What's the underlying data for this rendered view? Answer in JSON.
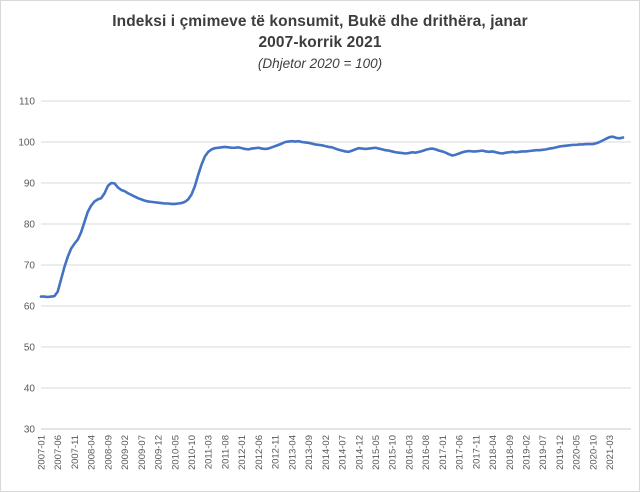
{
  "chart": {
    "title_line1": "Indeksi i çmimeve të konsumit, Bukë dhe drithëra, janar",
    "title_line2": "2007-korrik 2021",
    "subtitle": "(Dhjetor 2020 = 100)"
  },
  "chart_data": {
    "type": "line",
    "title": "Indeksi i çmimeve të konsumit, Bukë dhe drithëra, janar 2007-korrik 2021",
    "subtitle": "(Dhjetor 2020 = 100)",
    "x_start": "2007-01",
    "x_end": "2021-07",
    "frequency": "monthly",
    "x_tick_every_n_months": 5,
    "x_tick_labels": [
      "2007-01",
      "2007-06",
      "2007-11",
      "2008-04",
      "2008-09",
      "2009-02",
      "2009-07",
      "2009-12",
      "2010-05",
      "2010-10",
      "2011-03",
      "2011-08",
      "2012-01",
      "2012-06",
      "2012-11",
      "2013-04",
      "2013-09",
      "2014-02",
      "2014-07",
      "2014-12",
      "2015-05",
      "2015-10",
      "2016-03",
      "2016-08",
      "2017-01",
      "2017-06",
      "2017-11",
      "2018-04",
      "2018-09",
      "2019-02",
      "2019-07",
      "2019-12",
      "2020-05",
      "2020-10",
      "2021-03"
    ],
    "y_tick_labels": [
      "30",
      "40",
      "50",
      "60",
      "70",
      "80",
      "90",
      "100",
      "110"
    ],
    "ylim": [
      30,
      110
    ],
    "ytick_step": 10,
    "grid": "horizontal",
    "legend": "none",
    "series_name": "Indeksi i çmimeve të konsumit, Bukë dhe drithëra",
    "values": [
      62.3,
      62.3,
      62.2,
      62.3,
      62.4,
      63.5,
      66.5,
      69.5,
      72.0,
      74.0,
      75.2,
      76.2,
      78.0,
      80.5,
      83.0,
      84.5,
      85.5,
      86.0,
      86.3,
      87.5,
      89.3,
      90.0,
      89.9,
      88.9,
      88.3,
      88.0,
      87.5,
      87.1,
      86.7,
      86.3,
      86.0,
      85.7,
      85.5,
      85.4,
      85.3,
      85.2,
      85.1,
      85.0,
      85.0,
      84.9,
      84.9,
      85.0,
      85.1,
      85.4,
      86.0,
      87.2,
      89.2,
      92.0,
      94.5,
      96.5,
      97.6,
      98.2,
      98.5,
      98.6,
      98.7,
      98.8,
      98.7,
      98.6,
      98.6,
      98.7,
      98.5,
      98.3,
      98.2,
      98.4,
      98.5,
      98.6,
      98.4,
      98.3,
      98.4,
      98.7,
      99.0,
      99.3,
      99.6,
      100.0,
      100.1,
      100.2,
      100.1,
      100.2,
      100.0,
      99.9,
      99.8,
      99.6,
      99.4,
      99.3,
      99.2,
      99.0,
      98.8,
      98.7,
      98.4,
      98.1,
      97.9,
      97.7,
      97.6,
      97.9,
      98.2,
      98.5,
      98.4,
      98.3,
      98.4,
      98.5,
      98.6,
      98.4,
      98.2,
      98.0,
      97.9,
      97.7,
      97.5,
      97.4,
      97.3,
      97.2,
      97.3,
      97.5,
      97.4,
      97.6,
      97.8,
      98.1,
      98.3,
      98.4,
      98.2,
      97.9,
      97.7,
      97.4,
      97.0,
      96.7,
      96.9,
      97.2,
      97.5,
      97.7,
      97.8,
      97.7,
      97.7,
      97.8,
      97.9,
      97.7,
      97.6,
      97.7,
      97.5,
      97.3,
      97.2,
      97.4,
      97.5,
      97.6,
      97.5,
      97.6,
      97.7,
      97.7,
      97.8,
      97.9,
      98.0,
      98.0,
      98.1,
      98.2,
      98.4,
      98.5,
      98.7,
      98.9,
      99.0,
      99.1,
      99.2,
      99.3,
      99.3,
      99.4,
      99.4,
      99.5,
      99.5,
      99.5,
      99.7,
      100.0,
      100.4,
      100.8,
      101.2,
      101.3,
      101.0,
      100.9,
      101.1
    ],
    "colors": {
      "line": "#4472C4",
      "gridline": "#d9d9d9",
      "axis_line": "#c9c9c9",
      "tick_label": "#595959",
      "title": "#3d3d3d",
      "border": "#d9d9d9"
    }
  }
}
